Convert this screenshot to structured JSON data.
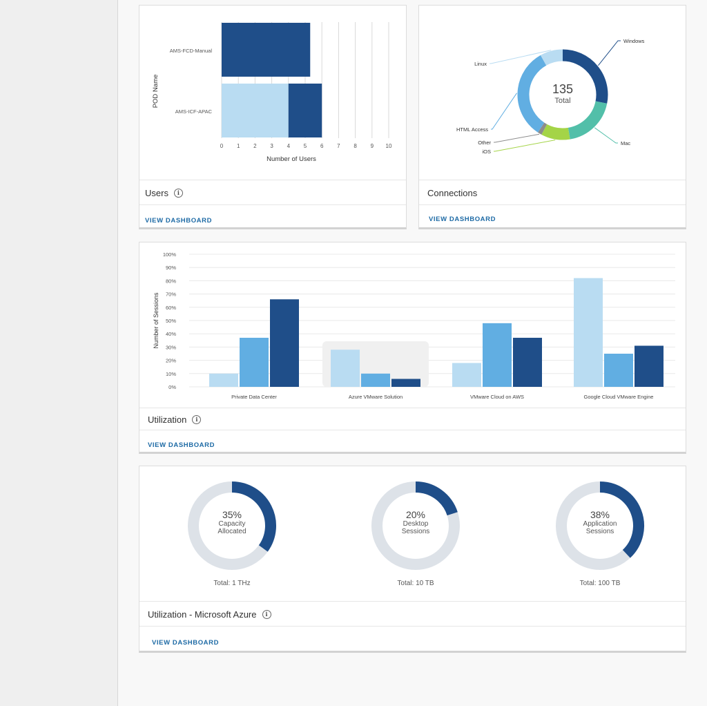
{
  "users_card": {
    "title": "Users",
    "link": "VIEW DASHBOARD",
    "chart_data": {
      "type": "bar",
      "orientation": "horizontal",
      "stacked": true,
      "categories": [
        "AMS-FCD-Manual",
        "AMS-ICF-APAC"
      ],
      "series": [
        {
          "values": [
            0,
            4
          ],
          "color": "#b9dcf2"
        },
        {
          "values": [
            5.3,
            2
          ],
          "color": "#1f4e89"
        }
      ],
      "xlabel": "Number of Users",
      "ylabel": "POD Name",
      "xlim": [
        0,
        10
      ],
      "xticks": [
        "0",
        "1",
        "2",
        "3",
        "4",
        "5",
        "6",
        "7",
        "8",
        "9",
        "10"
      ],
      "grid": true
    }
  },
  "connections_card": {
    "title": "Connections",
    "link": "VIEW DASHBOARD",
    "chart_data": {
      "type": "pie",
      "donut": true,
      "center_value": "135",
      "center_label": "Total",
      "labels": [
        "Windows",
        "Mac",
        "iOS",
        "Other",
        "HTML Access",
        "Linux"
      ],
      "values": [
        38,
        26,
        14,
        2,
        44,
        11
      ],
      "colors": [
        "#1f4e89",
        "#52bfa9",
        "#a4d447",
        "#8c8c8c",
        "#61aee2",
        "#b9dcf2"
      ]
    }
  },
  "utilization_card": {
    "title": "Utilization",
    "link": "VIEW DASHBOARD",
    "chart_data": {
      "type": "bar",
      "categories": [
        "Private Data Center",
        "Azure VMware Solution",
        "VMware Cloud on AWS",
        "Google Cloud VMware Engine"
      ],
      "series": [
        {
          "values": [
            10,
            28,
            18,
            82
          ],
          "color": "#b9dcf2"
        },
        {
          "values": [
            37,
            10,
            48,
            25
          ],
          "color": "#61aee2"
        },
        {
          "values": [
            66,
            6,
            37,
            31
          ],
          "color": "#1f4e89"
        }
      ],
      "ylabel": "Number of Sessions",
      "ylim": [
        0,
        100
      ],
      "yticks": [
        "0%",
        "10%",
        "20%",
        "30%",
        "40%",
        "50%",
        "60%",
        "70%",
        "80%",
        "90%",
        "100%"
      ],
      "highlighted_category": "Azure VMware Solution",
      "grid": true
    }
  },
  "azure_card": {
    "title": "Utilization - Microsoft Azure",
    "link": "VIEW DASHBOARD",
    "gauges": [
      {
        "value": 35,
        "percent": "35%",
        "line1": "Capacity",
        "line2": "Allocated",
        "total": "Total: 1 THz"
      },
      {
        "value": 20,
        "percent": "20%",
        "line1": "Desktop",
        "line2": "Sessions",
        "total": "Total: 10 TB"
      },
      {
        "value": 38,
        "percent": "38%",
        "line1": "Application",
        "line2": "Sessions",
        "total": "Total: 100 TB"
      }
    ],
    "fill_color": "#1f4e89",
    "track_color": "#dde2e8"
  }
}
